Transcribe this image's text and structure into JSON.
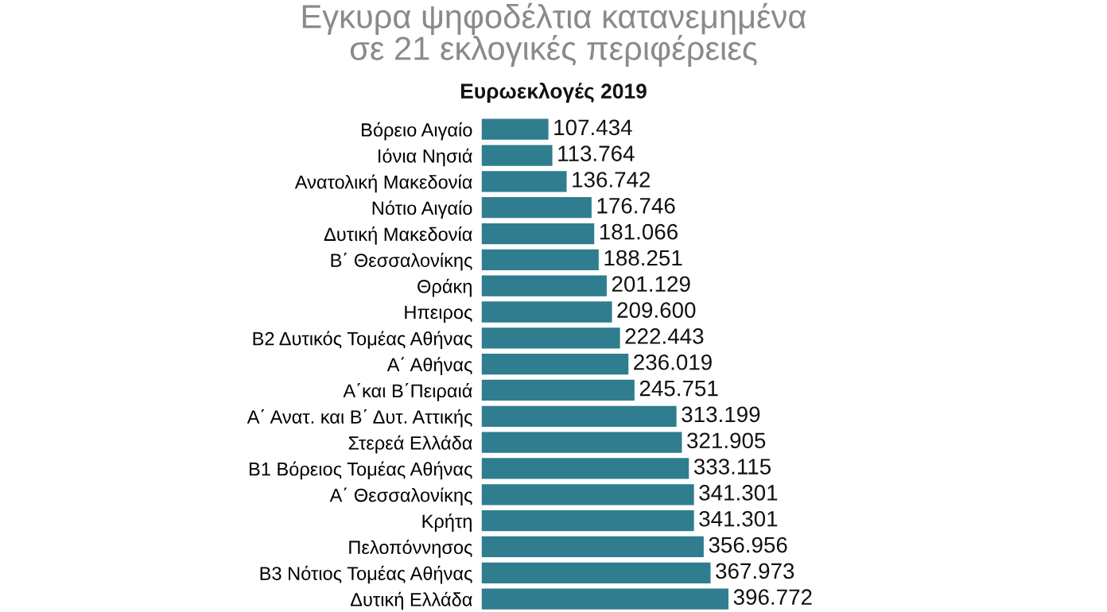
{
  "chart_data": {
    "type": "bar",
    "orientation": "horizontal",
    "title": "Εγκυρα ψηφοδέλτια κατανεμημένα\nσε 21 εκλογικές περιφέρειες",
    "subtitle": "Ευρωεκλογές 2019",
    "categories": [
      "Βόρειο Αιγαίο",
      "Ιόνια Νησιά",
      "Ανατολική Μακεδονία",
      "Νότιο Αιγαίο",
      "Δυτική Μακεδονία",
      "Β΄ Θεσσαλονίκης",
      "Θράκη",
      "Ηπειρος",
      "Β2 Δυτικός Τομέας Αθήνας",
      "Α΄ Αθήνας",
      "Α΄και Β΄Πειραιά",
      "Α΄ Ανατ. και Β΄ Δυτ. Αττικής",
      "Στερεά Ελλάδα",
      "Β1 Βόρειος Τομέας Αθήνας",
      "Α΄ Θεσσαλονίκης",
      "Κρήτη",
      "Πελοπόννησος",
      "Β3 Νότιος Τομέας Αθήνας",
      "Δυτική Ελλάδα"
    ],
    "values": [
      107434,
      113764,
      136742,
      176746,
      181066,
      188251,
      201129,
      209600,
      222443,
      236019,
      245751,
      313199,
      321905,
      333115,
      341301,
      341301,
      356956,
      367973,
      396772
    ],
    "value_labels": [
      "107.434",
      "113.764",
      "136.742",
      "176.746",
      "181.066",
      "188.251",
      "201.129",
      "209.600",
      "222.443",
      "236.019",
      "245.751",
      "313.199",
      "321.905",
      "333.115",
      "341.301",
      "341.301",
      "356.956",
      "367.973",
      "396.772"
    ],
    "color": "#2f7d8e",
    "grid": false,
    "legend": false
  }
}
